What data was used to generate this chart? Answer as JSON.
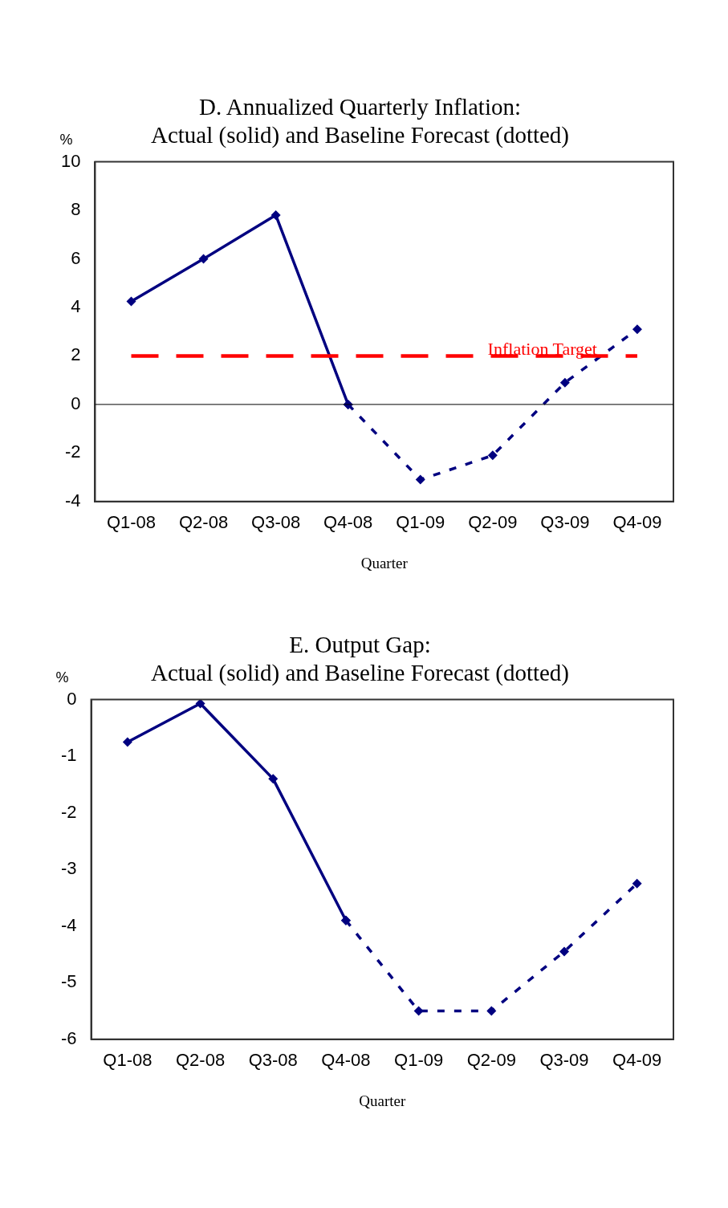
{
  "chart_data": [
    {
      "type": "line",
      "title": "D. Annualized Quarterly Inflation:\nActual (solid) and Baseline Forecast (dotted)",
      "xlabel": "Quarter",
      "ylabel": "%",
      "categories": [
        "Q1-08",
        "Q2-08",
        "Q3-08",
        "Q4-08",
        "Q1-09",
        "Q2-09",
        "Q3-09",
        "Q4-09"
      ],
      "series": [
        {
          "color": "#000080",
          "line_style": "solid",
          "values": [
            4.25,
            6.0,
            7.8,
            0,
            null,
            null,
            null,
            null
          ]
        },
        {
          "color": "#000080",
          "line_style": "dashed",
          "values": [
            null,
            null,
            null,
            0,
            -3.1,
            -2.1,
            0.9,
            3.1
          ]
        }
      ],
      "ylim": [
        -4,
        10
      ],
      "yticks": [
        -4,
        -2,
        0,
        2,
        4,
        6,
        8,
        10
      ],
      "grid": false,
      "legend": false,
      "marker": "diamond",
      "ref_lines": [
        {
          "axis": "y",
          "value": 2,
          "label": "Inflation Target",
          "color": "#ff0000",
          "line_style": "dashed"
        },
        {
          "axis": "y",
          "value": 0,
          "color": "#000000",
          "line_style": "solid"
        }
      ]
    },
    {
      "type": "line",
      "title": "E. Output Gap:\nActual (solid) and Baseline Forecast (dotted)",
      "xlabel": "Quarter",
      "ylabel": "%",
      "categories": [
        "Q1-08",
        "Q2-08",
        "Q3-08",
        "Q4-08",
        "Q1-09",
        "Q2-09",
        "Q3-09",
        "Q4-09"
      ],
      "series": [
        {
          "color": "#000080",
          "line_style": "solid",
          "values": [
            -0.75,
            -0.07,
            -1.4,
            -3.9,
            null,
            null,
            null,
            null
          ]
        },
        {
          "color": "#000080",
          "line_style": "dashed",
          "values": [
            null,
            null,
            null,
            -3.9,
            -5.5,
            -5.5,
            -4.45,
            -3.25
          ]
        }
      ],
      "ylim": [
        -6,
        0
      ],
      "yticks": [
        -6,
        -5,
        -4,
        -3,
        -2,
        -1,
        0
      ],
      "grid": false,
      "legend": false,
      "marker": "diamond"
    }
  ]
}
